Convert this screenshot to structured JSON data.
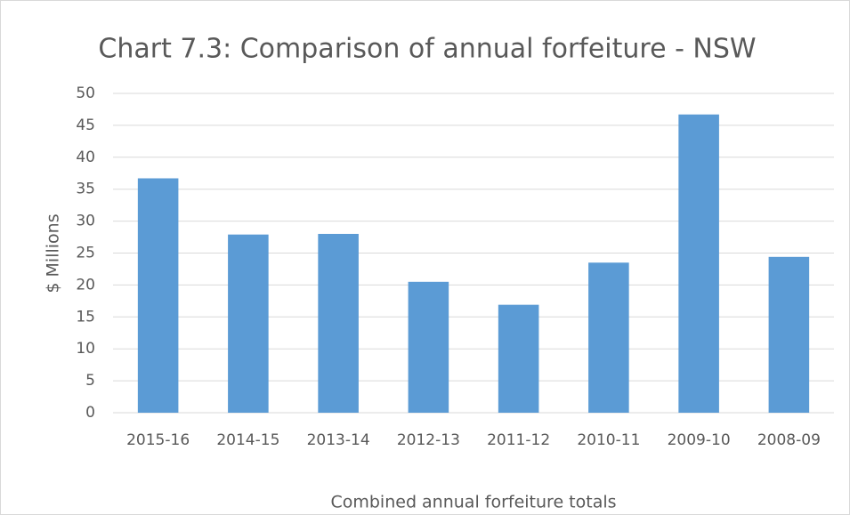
{
  "chart_data": {
    "type": "bar",
    "title": "Chart 7.3: Comparison of annual forfeiture - NSW",
    "x_label": "Combined annual forfeiture totals",
    "y_label": "$ Millions",
    "categories": [
      "2015-16",
      "2014-15",
      "2013-14",
      "2012-13",
      "2011-12",
      "2010-11",
      "2009-10",
      "2008-09"
    ],
    "values": [
      36.7,
      27.9,
      28.0,
      20.5,
      16.9,
      23.5,
      46.7,
      24.4
    ],
    "color": "#5b9bd5",
    "ylim": [
      0,
      50
    ],
    "yticks": [
      0,
      5,
      10,
      15,
      20,
      25,
      30,
      35,
      40,
      45,
      50
    ],
    "grid": true
  }
}
